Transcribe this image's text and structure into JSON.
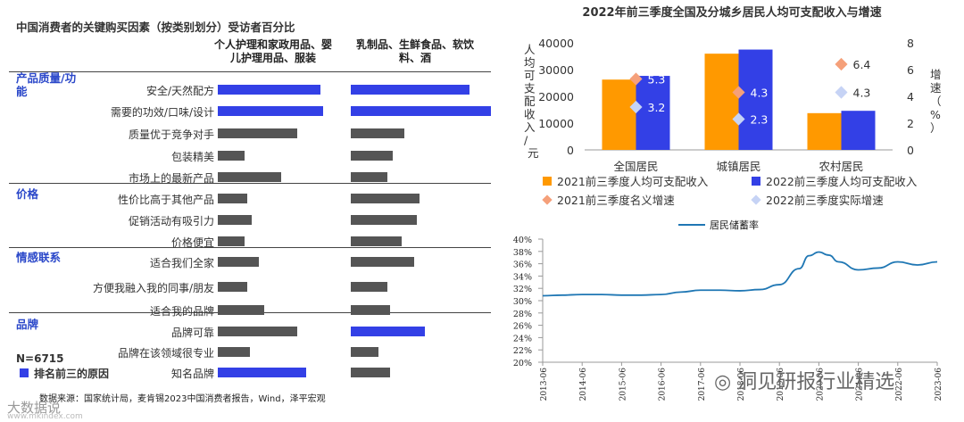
{
  "left_panel": {
    "title": "中国消费者的关键购买因素（按类别划分）受访者百分比",
    "col1_header": "个人护理和家政用品、婴儿护理用品、服装",
    "col2_header": "乳制品、生鲜食品、软饮料、酒",
    "categories": [
      {
        "name": "产品质量/功能",
        "factors": [
          {
            "label": "安全/天然配方",
            "v1": 73,
            "v2": 85,
            "top1": true,
            "top2": true
          },
          {
            "label": "需要的功效/口味/设计",
            "v1": 75,
            "v2": 100,
            "top1": true,
            "top2": true
          },
          {
            "label": "质量优于竞争对手",
            "v1": 57,
            "v2": 38,
            "top1": false,
            "top2": false
          },
          {
            "label": "包装精美",
            "v1": 19,
            "v2": 30,
            "top1": false,
            "top2": false
          },
          {
            "label": "市场上的最新产品",
            "v1": 45,
            "v2": 26,
            "top1": false,
            "top2": false
          }
        ]
      },
      {
        "name": "价格",
        "factors": [
          {
            "label": "性价比高于其他产品",
            "v1": 21,
            "v2": 49,
            "top1": false,
            "top2": false
          },
          {
            "label": "促销活动有吸引力",
            "v1": 24,
            "v2": 47,
            "top1": false,
            "top2": false
          },
          {
            "label": "价格便宜",
            "v1": 19,
            "v2": 36,
            "top1": false,
            "top2": false
          }
        ]
      },
      {
        "name": "情感联系",
        "factors": [
          {
            "label": "适合我们全家",
            "v1": 29,
            "v2": 45,
            "top1": false,
            "top2": false
          },
          {
            "label": "方便我融入我的同事/朋友",
            "v1": 21,
            "v2": 26,
            "top1": false,
            "top2": false
          },
          {
            "label": "适合我的品牌",
            "v1": 33,
            "v2": 28,
            "top1": false,
            "top2": false
          }
        ]
      },
      {
        "name": "品牌",
        "factors": [
          {
            "label": "品牌可靠",
            "v1": 57,
            "v2": 53,
            "top1": false,
            "top2": true
          },
          {
            "label": "品牌在该领域很专业",
            "v1": 23,
            "v2": 20,
            "top1": false,
            "top2": false
          },
          {
            "label": "知名品牌",
            "v1": 63,
            "v2": 28,
            "top1": true,
            "top2": false
          }
        ]
      }
    ],
    "n_label": "N=6715",
    "legend_label": "排名前三的原因",
    "source": "数据来源：国家统计局，麦肯锡2023中国消费者报告，Wind，泽平宏观",
    "colors": {
      "top3": "#3340e6",
      "other": "#555555"
    }
  },
  "income_chart_title": "2022年前三季度全国及分城乡居民人均可支配收入与增速",
  "watermark_text": "洞见研报行业精选",
  "watermark_bottom": "大数据说",
  "watermark_url": "www.mkindex.com",
  "chart_data": [
    {
      "type": "bar",
      "title": "2022年前三季度全国及分城乡居民人均可支配收入与增速",
      "categories": [
        "全国居民",
        "城镇居民",
        "农村居民"
      ],
      "ylabel": "人均可支配收入/元",
      "y2label": "增速（%）",
      "ylim": [
        0,
        40000
      ],
      "yticks": [
        0,
        10000,
        20000,
        30000,
        40000
      ],
      "y2lim": [
        0,
        8
      ],
      "y2ticks": [
        0,
        2,
        4,
        6,
        8
      ],
      "series": [
        {
          "name": "2021前三季度人均可支配收入",
          "kind": "bar",
          "color": "#ff9900",
          "values": [
            26265,
            35946,
            13726
          ]
        },
        {
          "name": "2022前三季度人均可支配收入",
          "kind": "bar",
          "color": "#3340e6",
          "values": [
            27650,
            37482,
            14600
          ]
        },
        {
          "name": "2021前三季度名义增速",
          "kind": "marker",
          "color": "#f5a07a",
          "values": [
            5.3,
            4.3,
            6.4
          ],
          "labels": [
            "5.3",
            "4.3",
            "6.4"
          ]
        },
        {
          "name": "2022前三季度实际增速",
          "kind": "marker",
          "color": "#c6d3f5",
          "values": [
            3.2,
            2.3,
            4.3
          ],
          "labels": [
            "3.2",
            "2.3",
            "4.3"
          ]
        }
      ]
    },
    {
      "type": "line",
      "title": "居民储蓄率",
      "legend": "居民储蓄率",
      "color": "#1f77b4",
      "ylim": [
        20,
        40
      ],
      "yticks": [
        "20%",
        "22%",
        "24%",
        "26%",
        "28%",
        "30%",
        "32%",
        "34%",
        "36%",
        "38%",
        "40%"
      ],
      "x_ticks": [
        "2013-06",
        "2014-06",
        "2015-06",
        "2016-06",
        "2017-06",
        "2018-06",
        "2019-06",
        "2020-06",
        "2021-06",
        "2022-06",
        "2023-06"
      ],
      "x": [
        2013.5,
        2014.0,
        2014.5,
        2015.0,
        2015.5,
        2016.0,
        2016.5,
        2017.0,
        2017.5,
        2018.0,
        2018.5,
        2019.0,
        2019.5,
        2020.0,
        2020.25,
        2020.5,
        2020.75,
        2021.0,
        2021.5,
        2022.0,
        2022.5,
        2023.0,
        2023.5
      ],
      "y": [
        30.8,
        30.9,
        31.0,
        31.0,
        30.9,
        30.9,
        31.0,
        31.4,
        31.7,
        31.7,
        31.6,
        31.8,
        32.6,
        35.2,
        37.3,
        37.9,
        37.4,
        36.3,
        35.0,
        35.3,
        36.3,
        35.8,
        36.3
      ]
    }
  ]
}
